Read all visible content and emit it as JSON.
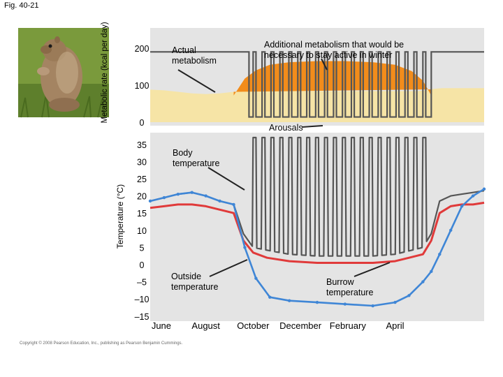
{
  "figure_label": "Fig. 40-21",
  "copyright": "Copyright © 2008 Pearson Education, Inc., publishing as Pearson Benjamin Cummings.",
  "colors": {
    "panel_bg": "#e4e4e4",
    "actual_fill": "#f6e4a6",
    "additional_fill": "#f28c1b",
    "body_line": "#555555",
    "burrow_line": "#e03a3a",
    "outside_line": "#3f86d6"
  },
  "chart_data": [
    {
      "type": "area",
      "ylabel": "Metabolic rate (kcal per day)",
      "ylim": [
        0,
        250
      ],
      "yticks": [
        0,
        100,
        200
      ],
      "xlim": [
        0,
        12
      ],
      "series": [
        {
          "name": "Actual metabolism",
          "x": [
            0,
            0.5,
            1,
            1.5,
            2,
            2.5,
            3,
            3.3,
            3.6,
            3.9,
            4.2,
            5,
            6,
            7,
            8,
            9,
            9.6,
            9.9,
            10.2,
            10.5,
            11,
            11.5,
            12
          ],
          "values": [
            88,
            86,
            82,
            78,
            76,
            78,
            82,
            84,
            85,
            84,
            84,
            84,
            84,
            84,
            84,
            84,
            84,
            86,
            90,
            92,
            92,
            92,
            92
          ]
        },
        {
          "name": "Additional metabolism that would be necessary to stay active in winter",
          "x": [
            3.0,
            3.4,
            3.8,
            4.3,
            5,
            6,
            7,
            8,
            8.8,
            9.4,
            9.8,
            10.1
          ],
          "values": [
            72,
            118,
            140,
            155,
            162,
            165,
            165,
            162,
            155,
            138,
            112,
            72
          ]
        }
      ],
      "annotations": [
        "Arousals"
      ]
    },
    {
      "type": "line",
      "ylabel": "Temperature (°C)",
      "ylim": [
        -15,
        35
      ],
      "yticks": [
        35,
        30,
        25,
        20,
        15,
        10,
        5,
        0,
        -5,
        -10,
        -15
      ],
      "yticklabels": [
        "35",
        "30",
        "25",
        "20",
        "15",
        "10",
        "5",
        "0",
        "–5",
        "–10",
        "–15"
      ],
      "xlim": [
        0,
        12
      ],
      "xticks": [
        0.4,
        2,
        3.7,
        5.4,
        7.1,
        8.8
      ],
      "categories": [
        "June",
        "August",
        "October",
        "December",
        "February",
        "April"
      ],
      "series": [
        {
          "name": "Body temperature",
          "x": [
            0,
            0.5,
            1,
            1.5,
            2,
            2.5,
            3,
            3.35,
            3.7,
            4.2,
            5,
            6,
            7,
            8,
            8.8,
            9.3,
            9.8,
            10.1,
            10.4,
            10.8,
            11.2,
            11.6,
            12
          ],
          "values": [
            18.5,
            19.5,
            20.5,
            21,
            20,
            18.5,
            17.5,
            9,
            5,
            4.2,
            3,
            2.5,
            2.5,
            2.5,
            3,
            4,
            5,
            9,
            18.5,
            20,
            20.5,
            21,
            21.5
          ],
          "arousals": 20,
          "active_level": 37,
          "torpor_level": 7
        },
        {
          "name": "Burrow temperature",
          "x": [
            0,
            0.5,
            1,
            1.5,
            2,
            2.5,
            3,
            3.35,
            3.7,
            4.2,
            5,
            6,
            7,
            8,
            8.8,
            9.3,
            9.8,
            10.1,
            10.4,
            10.8,
            11.2,
            11.6,
            12
          ],
          "values": [
            16.5,
            17,
            17.5,
            17.5,
            17,
            16,
            15,
            7,
            3.5,
            2,
            1,
            0.5,
            0.5,
            0.5,
            1,
            2,
            3,
            7,
            15,
            17,
            17.5,
            17.5,
            18
          ]
        },
        {
          "name": "Outside temperature",
          "x": [
            0,
            0.5,
            1,
            1.5,
            2,
            2.5,
            3,
            3.4,
            3.8,
            4.3,
            5,
            6,
            7,
            8,
            8.8,
            9.3,
            9.8,
            10.1,
            10.4,
            10.8,
            11.2,
            11.6,
            12
          ],
          "values": [
            18.5,
            19.5,
            20.5,
            21,
            20,
            18.5,
            17.5,
            5,
            -4,
            -9.5,
            -10.5,
            -11,
            -11.5,
            -12,
            -11,
            -9,
            -5,
            -2,
            3,
            10,
            17,
            20,
            22
          ]
        }
      ],
      "annotations": [
        "Body temperature",
        "Outside temperature",
        "Burrow temperature"
      ]
    }
  ]
}
